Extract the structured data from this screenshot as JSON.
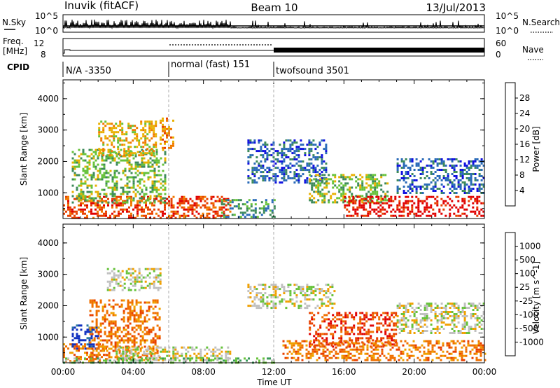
{
  "header": {
    "station": "Inuvik (fitACF)",
    "beam": "Beam 10",
    "date": "13/Jul/2013"
  },
  "top_panels": {
    "nsky_label": "N.Sky",
    "nsky_ticks": [
      "10^5",
      "10^0"
    ],
    "nsearch_label": "N.Search",
    "nsearch_ticks": [
      "10^5",
      "10^0"
    ],
    "freq_label_1": "Freq.",
    "freq_label_2": "[MHz]",
    "freq_ticks": [
      "12",
      "8"
    ],
    "nave_label": "Nave",
    "nave_ticks": [
      "60",
      "0"
    ],
    "cpid_label": "CPID",
    "cpid_segments": [
      {
        "label": "N/A -3350",
        "start_hour": 0,
        "end_hour": 6
      },
      {
        "label": "normal (fast) 151",
        "start_hour": 6,
        "end_hour": 12
      },
      {
        "label": "twofsound 3501",
        "start_hour": 12,
        "end_hour": 24
      }
    ]
  },
  "chart_data": [
    {
      "type": "heatmap",
      "title": "",
      "xlabel": "",
      "ylabel": "Slant Range [km]",
      "xlim": [
        0,
        24
      ],
      "ylim": [
        180,
        4600
      ],
      "yticks": [
        1000,
        2000,
        3000,
        4000
      ],
      "colorbar": {
        "label": "Power [dB]",
        "ticks": [
          "4",
          "8",
          "12",
          "16",
          "20",
          "24",
          "28"
        ],
        "colors": [
          "#1010e0",
          "#2a6ab8",
          "#3d8a5a",
          "#66c23a",
          "#e8b000",
          "#f07a00",
          "#e84000",
          "#e00000"
        ]
      },
      "echo_regions": [
        {
          "x": [
            0.0,
            6.0
          ],
          "y": [
            200,
            900
          ],
          "level": 6
        },
        {
          "x": [
            0.5,
            5.8
          ],
          "y": [
            700,
            2400
          ],
          "level": 3
        },
        {
          "x": [
            2.0,
            5.3
          ],
          "y": [
            2200,
            3300
          ],
          "level": 4
        },
        {
          "x": [
            5.5,
            6.3
          ],
          "y": [
            2400,
            3400
          ],
          "level": 5
        },
        {
          "x": [
            6.0,
            9.5
          ],
          "y": [
            200,
            900
          ],
          "level": 6
        },
        {
          "x": [
            9.0,
            12.0
          ],
          "y": [
            200,
            800
          ],
          "level": 2
        },
        {
          "x": [
            10.5,
            15.0
          ],
          "y": [
            1300,
            2700
          ],
          "level": 1
        },
        {
          "x": [
            14.0,
            18.5
          ],
          "y": [
            700,
            1600
          ],
          "level": 3
        },
        {
          "x": [
            16.0,
            24.0
          ],
          "y": [
            250,
            900
          ],
          "level": 7
        },
        {
          "x": [
            19.0,
            24.0
          ],
          "y": [
            1000,
            2100
          ],
          "level": 1
        }
      ]
    },
    {
      "type": "heatmap",
      "title": "",
      "xlabel": "Time UT",
      "ylabel": "Slant Range [km]",
      "xlim": [
        0,
        24
      ],
      "ylim": [
        180,
        4600
      ],
      "yticks": [
        1000,
        2000,
        3000,
        4000
      ],
      "xticks": [
        "00:00",
        "04:00",
        "08:00",
        "12:00",
        "16:00",
        "20:00",
        "00:00"
      ],
      "colorbar": {
        "label": "Velocity [m s^-1]",
        "ticks": [
          "1000",
          "500",
          "100",
          "25",
          "-25",
          "-100",
          "-500",
          "-1000"
        ],
        "colors": [
          "#1030c0",
          "#2a78a0",
          "#3a9a5a",
          "#66c23a",
          "#c0c0c0",
          "#f0a000",
          "#f07000",
          "#e84000",
          "#e00000"
        ]
      },
      "echo_regions": [
        {
          "x": [
            0.0,
            2.5
          ],
          "y": [
            200,
            800
          ],
          "level": 6
        },
        {
          "x": [
            0.5,
            2.0
          ],
          "y": [
            600,
            1400
          ],
          "level": 0
        },
        {
          "x": [
            1.5,
            5.5
          ],
          "y": [
            300,
            2200
          ],
          "level": 6
        },
        {
          "x": [
            3.0,
            9.5
          ],
          "y": [
            250,
            700
          ],
          "level": 4
        },
        {
          "x": [
            2.5,
            5.5
          ],
          "y": [
            2500,
            3200
          ],
          "level": 4
        },
        {
          "x": [
            0.0,
            12.0
          ],
          "y": [
            180,
            350
          ],
          "level": 3
        },
        {
          "x": [
            10.5,
            15.5
          ],
          "y": [
            1900,
            2700
          ],
          "level": 4
        },
        {
          "x": [
            14.0,
            19.0
          ],
          "y": [
            700,
            1800
          ],
          "level": 7
        },
        {
          "x": [
            12.5,
            24.0
          ],
          "y": [
            250,
            900
          ],
          "level": 6
        },
        {
          "x": [
            19.0,
            24.0
          ],
          "y": [
            1100,
            2100
          ],
          "level": 4
        }
      ]
    }
  ]
}
